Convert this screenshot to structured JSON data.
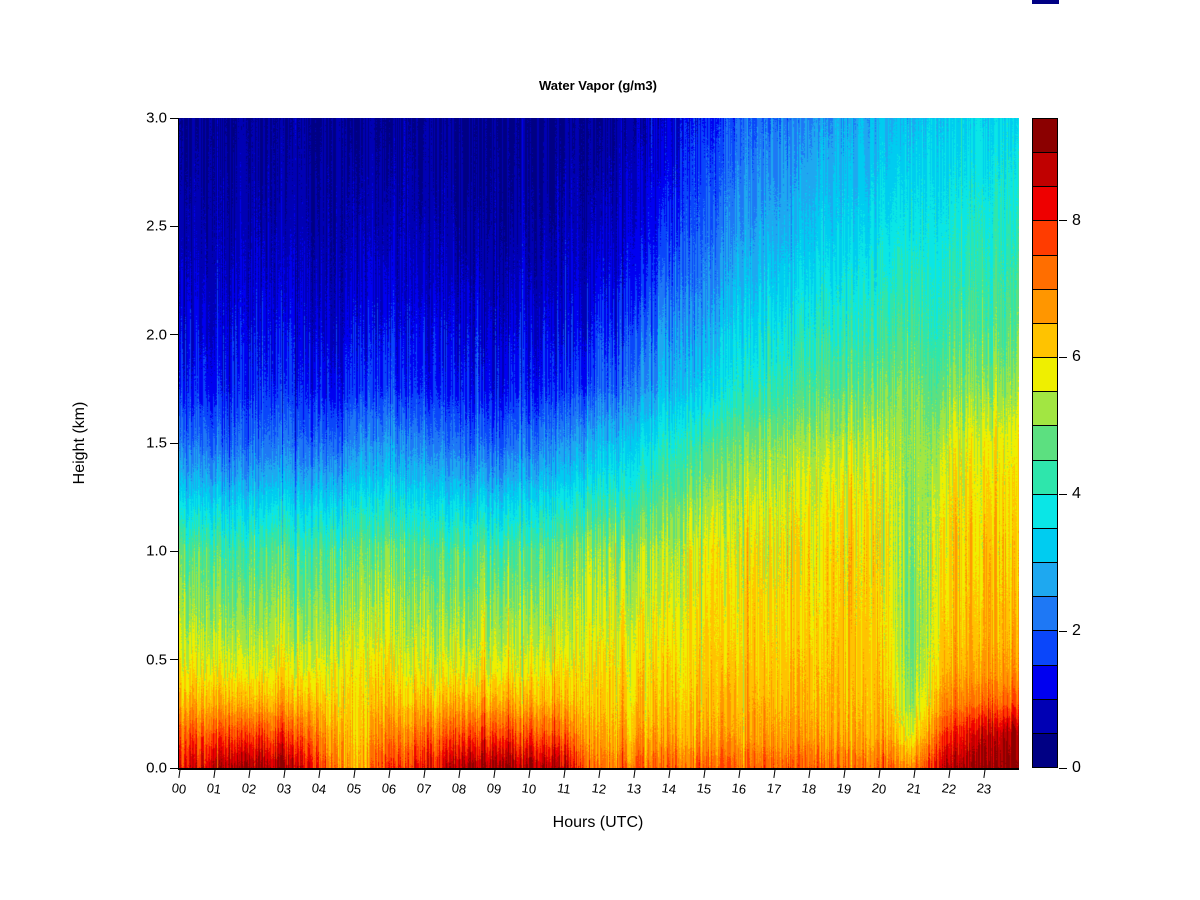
{
  "page": {
    "background": "#ffffff"
  },
  "chart": {
    "title": "Water Vapor (g/m3)",
    "x_axis_title": "Hours (UTC)",
    "y_axis_title": "Height (km)",
    "x_tick_labels": [
      "00",
      "01",
      "02",
      "03",
      "04",
      "05",
      "06",
      "07",
      "08",
      "09",
      "10",
      "11",
      "12",
      "13",
      "14",
      "15",
      "16",
      "17",
      "18",
      "19",
      "20",
      "21",
      "22",
      "23"
    ],
    "y_tick_labels": [
      "0.0",
      "0.5",
      "1.0",
      "1.5",
      "2.0",
      "2.5",
      "3.0"
    ],
    "y_tick_values": [
      0.0,
      0.5,
      1.0,
      1.5,
      2.0,
      2.5,
      3.0
    ]
  },
  "chart_data": {
    "type": "heatmap",
    "title": "Water Vapor (g/m3)",
    "xlabel": "Hours (UTC)",
    "ylabel": "Height (km)",
    "unit": "g/m3",
    "xlim": [
      0,
      24
    ],
    "ylim": [
      0.0,
      3.0
    ],
    "x_hours": [
      0,
      1,
      2,
      3,
      4,
      5,
      6,
      7,
      8,
      9,
      10,
      11,
      12,
      13,
      14,
      15,
      16,
      17,
      18,
      19,
      20,
      21,
      22,
      23,
      24
    ],
    "y_heights_km": [
      3.0,
      2.75,
      2.5,
      2.25,
      2.0,
      1.75,
      1.5,
      1.35,
      1.2,
      1.0,
      0.8,
      0.6,
      0.45,
      0.3,
      0.15,
      0.0
    ],
    "values": [
      [
        0.45,
        0.4,
        0.38,
        0.4,
        0.35,
        0.4,
        0.45,
        0.4,
        0.35,
        0.33,
        0.35,
        0.4,
        0.5,
        0.7,
        1.0,
        1.4,
        1.9,
        2.2,
        2.5,
        2.7,
        2.9,
        3.1,
        3.3,
        3.4,
        3.5
      ],
      [
        0.6,
        0.55,
        0.5,
        0.55,
        0.5,
        0.55,
        0.6,
        0.55,
        0.5,
        0.45,
        0.5,
        0.55,
        0.65,
        0.9,
        1.2,
        1.7,
        2.2,
        2.5,
        2.8,
        3.0,
        3.2,
        3.4,
        3.6,
        3.7,
        3.8
      ],
      [
        0.75,
        0.7,
        0.65,
        0.7,
        0.6,
        0.7,
        0.75,
        0.7,
        0.6,
        0.55,
        0.6,
        0.7,
        0.85,
        1.1,
        1.5,
        2.0,
        2.5,
        2.8,
        3.1,
        3.3,
        3.5,
        3.7,
        3.9,
        4.0,
        4.1
      ],
      [
        0.95,
        0.9,
        0.85,
        0.9,
        0.8,
        0.9,
        0.95,
        0.9,
        0.8,
        0.75,
        0.8,
        0.9,
        1.1,
        1.4,
        1.9,
        2.4,
        2.9,
        3.2,
        3.5,
        3.7,
        3.9,
        4.05,
        4.2,
        4.3,
        4.4
      ],
      [
        1.2,
        1.15,
        1.1,
        1.2,
        1.05,
        1.2,
        1.25,
        1.2,
        1.05,
        1.0,
        1.1,
        1.2,
        1.5,
        1.9,
        2.4,
        2.9,
        3.4,
        3.7,
        4.0,
        4.2,
        4.3,
        4.35,
        4.5,
        4.6,
        4.7
      ],
      [
        1.5,
        1.45,
        1.4,
        1.5,
        1.35,
        1.55,
        1.6,
        1.5,
        1.35,
        1.3,
        1.4,
        1.6,
        1.9,
        2.4,
        2.9,
        3.4,
        3.9,
        4.2,
        4.5,
        4.7,
        4.8,
        4.8,
        5.0,
        5.1,
        5.2
      ],
      [
        2.2,
        2.1,
        2.0,
        2.2,
        2.0,
        2.4,
        2.5,
        2.4,
        2.1,
        2.0,
        2.2,
        2.5,
        2.9,
        3.4,
        3.9,
        4.4,
        4.8,
        5.0,
        5.2,
        5.3,
        5.4,
        5.0,
        5.6,
        5.7,
        5.8
      ],
      [
        2.8,
        2.7,
        2.6,
        2.8,
        2.6,
        3.0,
        3.1,
        3.0,
        2.7,
        2.6,
        2.8,
        3.1,
        3.5,
        3.9,
        4.4,
        4.8,
        5.1,
        5.3,
        5.5,
        5.6,
        5.6,
        5.0,
        5.8,
        5.9,
        6.0
      ],
      [
        3.6,
        3.5,
        3.4,
        3.6,
        3.4,
        3.8,
        3.9,
        3.8,
        3.5,
        3.4,
        3.6,
        3.9,
        4.2,
        4.5,
        4.9,
        5.2,
        5.4,
        5.6,
        5.7,
        5.8,
        5.8,
        5.0,
        6.0,
        6.0,
        6.1
      ],
      [
        4.6,
        4.5,
        4.4,
        4.6,
        4.4,
        4.7,
        4.8,
        4.7,
        4.5,
        4.4,
        4.6,
        4.8,
        5.0,
        5.2,
        5.4,
        5.6,
        5.7,
        5.8,
        5.9,
        6.0,
        5.9,
        5.0,
        6.1,
        6.2,
        6.2
      ],
      [
        5.0,
        4.9,
        4.9,
        5.0,
        4.8,
        5.1,
        5.2,
        5.1,
        4.9,
        4.9,
        5.0,
        5.2,
        5.3,
        5.5,
        5.6,
        5.8,
        5.9,
        6.0,
        6.0,
        6.1,
        6.0,
        4.9,
        6.2,
        6.3,
        6.3
      ],
      [
        5.4,
        5.3,
        5.3,
        5.4,
        5.2,
        5.5,
        5.5,
        5.5,
        5.3,
        5.3,
        5.4,
        5.5,
        5.6,
        5.8,
        5.9,
        6.0,
        6.0,
        6.1,
        6.1,
        6.2,
        6.1,
        4.9,
        6.3,
        6.4,
        6.5
      ],
      [
        5.8,
        5.7,
        5.7,
        5.8,
        5.6,
        5.8,
        5.9,
        5.8,
        5.7,
        5.7,
        5.8,
        5.9,
        5.9,
        6.0,
        6.1,
        6.1,
        6.2,
        6.2,
        6.3,
        6.3,
        6.2,
        5.0,
        6.5,
        6.6,
        6.7
      ],
      [
        6.4,
        6.4,
        6.5,
        6.5,
        6.2,
        5.9,
        6.3,
        6.4,
        6.5,
        6.5,
        6.5,
        6.4,
        6.1,
        6.2,
        6.3,
        6.3,
        6.4,
        6.4,
        6.4,
        6.4,
        6.3,
        5.2,
        7.0,
        7.2,
        7.4
      ],
      [
        7.4,
        7.5,
        7.8,
        7.7,
        7.0,
        6.0,
        7.0,
        7.3,
        7.6,
        7.7,
        7.6,
        7.4,
        6.4,
        6.6,
        6.6,
        6.6,
        6.6,
        6.7,
        6.7,
        6.6,
        6.5,
        5.8,
        7.9,
        8.6,
        9.0
      ],
      [
        8.2,
        8.6,
        9.2,
        9.0,
        7.8,
        6.2,
        7.8,
        8.2,
        8.9,
        9.1,
        9.0,
        8.7,
        7.0,
        7.3,
        7.3,
        7.4,
        7.3,
        7.4,
        7.4,
        7.3,
        7.2,
        7.0,
        8.8,
        9.2,
        9.4
      ]
    ],
    "color_scale": {
      "breaks_min": 0,
      "breaks_max": 9.5,
      "bin_size": 0.5,
      "tick_values": [
        0,
        2,
        4,
        6,
        8
      ],
      "tick_labels": [
        "0",
        "2",
        "4",
        "6",
        "8"
      ],
      "palette_low_to_high": [
        "#000084",
        "#0000B4",
        "#0000F0",
        "#0A46FA",
        "#1E78F5",
        "#1EA8F0",
        "#00CCF0",
        "#0AE6E6",
        "#2EE6AC",
        "#5CE080",
        "#A2E642",
        "#EFEF00",
        "#FFC300",
        "#FF9600",
        "#FF6E00",
        "#FF3C00",
        "#EE0000",
        "#C00000",
        "#8B0000"
      ],
      "legend_position": "right"
    },
    "texture_note": "vertical streak noise columns"
  }
}
